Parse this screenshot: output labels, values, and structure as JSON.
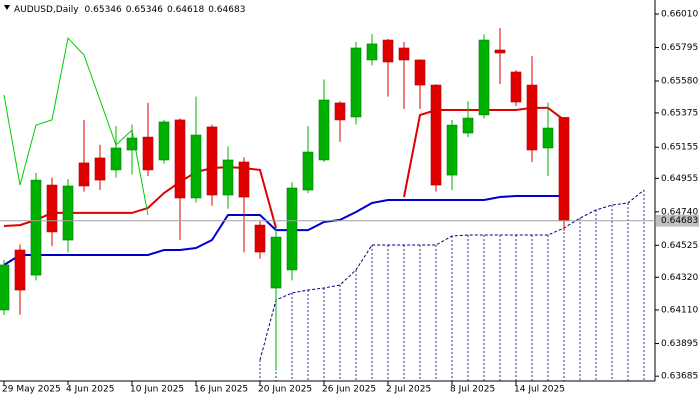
{
  "chart_data": {
    "type": "candlestick",
    "symbol": "AUDUSD,Daily",
    "categories": [
      "29 May 2025",
      null,
      null,
      null,
      "4 Jun 2025",
      null,
      null,
      null,
      "10 Jun 2025",
      null,
      null,
      null,
      "16 Jun 2025",
      null,
      null,
      null,
      "20 Jun 2025",
      null,
      null,
      null,
      "26 Jun 2025",
      null,
      null,
      null,
      "2 Jul 2025",
      null,
      null,
      null,
      "8 Jul 2025",
      null,
      null,
      null,
      "14 Jul 2025",
      null,
      null,
      null,
      null,
      null,
      null,
      null,
      null
    ],
    "open": [
      0.6411,
      0.64495,
      0.64334,
      0.64912,
      0.64559,
      0.65054,
      0.65086,
      0.65009,
      0.65137,
      0.6522,
      0.65073,
      0.6533,
      0.64829,
      0.65285,
      0.64848,
      0.6506,
      0.64655,
      0.64251,
      0.64367,
      0.6488,
      0.65073,
      0.65439,
      0.65349,
      0.65715,
      0.65843,
      0.65792,
      0.65715,
      0.65554,
      0.64976,
      0.65246,
      0.65362,
      0.65779,
      0.65638,
      0.65554,
      0.6515,
      0.65346,
      null,
      null,
      null,
      null,
      null
    ],
    "high": [
      0.64431,
      0.6453,
      0.6499,
      0.6496,
      0.6495,
      0.6533,
      0.6517,
      0.6529,
      0.653,
      0.6544,
      0.6533,
      0.6534,
      0.6548,
      0.653,
      0.6516,
      0.6509,
      0.6468,
      0.6464,
      0.6493,
      0.6529,
      0.6559,
      0.6545,
      0.6583,
      0.6588,
      0.6585,
      0.6583,
      0.6572,
      0.6556,
      0.6533,
      0.6545,
      0.6588,
      0.6592,
      0.6565,
      0.6574,
      0.6544,
      0.65346,
      null,
      null,
      null,
      null,
      null
    ],
    "low": [
      0.64078,
      0.6408,
      0.643,
      0.6452,
      0.6448,
      0.6487,
      0.6488,
      0.6496,
      0.6498,
      0.6497,
      0.6505,
      0.6456,
      0.648,
      0.6478,
      0.6476,
      0.6448,
      0.6444,
      0.6372,
      0.643,
      0.6486,
      0.6506,
      0.6519,
      0.653,
      0.6568,
      0.6548,
      0.654,
      0.654,
      0.6487,
      0.6488,
      0.6522,
      0.6534,
      0.6556,
      0.6542,
      0.6506,
      0.6497,
      0.64618,
      null,
      null,
      null,
      null,
      null
    ],
    "close": [
      0.64399,
      0.64238,
      0.64944,
      0.64611,
      0.64906,
      0.64906,
      0.64944,
      0.6515,
      0.65214,
      0.65009,
      0.65317,
      0.64829,
      0.65233,
      0.64848,
      0.65073,
      0.64835,
      0.64482,
      0.64578,
      0.64893,
      0.65124,
      0.65458,
      0.6533,
      0.65792,
      0.65818,
      0.65702,
      0.65715,
      0.65554,
      0.64912,
      0.65297,
      0.65342,
      0.65843,
      0.6576,
      0.65445,
      0.65137,
      0.65278,
      0.64683,
      null,
      null,
      null,
      null,
      null
    ],
    "up_color": "#00b000",
    "down_color": "#e00000",
    "lines": [
      {
        "color": "#e00000",
        "width": 2,
        "dashed": false,
        "values": [
          0.64649,
          0.64655,
          0.64688,
          0.64733,
          0.64733,
          0.64733,
          0.64733,
          0.64733,
          0.64733,
          0.64765,
          0.64861,
          0.64932,
          0.64996,
          0.65021,
          0.65028,
          0.65021,
          0.65009,
          0.64636,
          null,
          null,
          null,
          null,
          null,
          null,
          null,
          0.64835,
          0.65362,
          0.65394,
          0.65394,
          0.65394,
          0.65394,
          0.65394,
          0.65394,
          0.65407,
          0.65407,
          0.6533,
          null,
          null,
          null,
          null,
          null
        ]
      },
      {
        "color": "#0000cc",
        "width": 2,
        "dashed": false,
        "values": [
          0.64399,
          0.64463,
          0.64463,
          0.64463,
          0.64463,
          0.64463,
          0.64463,
          0.64463,
          0.64463,
          0.64463,
          0.64495,
          0.64495,
          0.64508,
          0.64559,
          0.6472,
          0.6472,
          0.6472,
          0.64623,
          0.64623,
          0.64623,
          0.64675,
          0.64688,
          0.64739,
          0.64797,
          0.64816,
          0.64816,
          0.64816,
          0.64816,
          0.64816,
          0.64816,
          0.64816,
          0.64835,
          0.64842,
          0.64842,
          0.64842,
          0.64842,
          null,
          null,
          null,
          null,
          null
        ]
      },
      {
        "color": "#00cc00",
        "width": 1,
        "dashed": false,
        "values": [
          0.6549,
          0.64912,
          0.65297,
          0.6533,
          0.65856,
          0.65747,
          0.65458,
          0.65169,
          0.65265,
          0.6472,
          null,
          null,
          null,
          null,
          null,
          null,
          null,
          null,
          null,
          null,
          null,
          null,
          null,
          null,
          null,
          null,
          null,
          null,
          null,
          null,
          null,
          null,
          null,
          null,
          null,
          null,
          null,
          null,
          null,
          null,
          null
        ]
      },
      {
        "color": "#000080",
        "width": 1,
        "dashed": true,
        "hatch": true,
        "values": [
          null,
          null,
          null,
          null,
          null,
          null,
          null,
          null,
          null,
          null,
          null,
          null,
          null,
          null,
          null,
          null,
          0.63789,
          0.64174,
          0.64219,
          0.64238,
          0.64251,
          0.6427,
          0.64367,
          0.64527,
          0.64527,
          0.64527,
          0.64527,
          0.64527,
          0.64585,
          0.64591,
          0.64591,
          0.64591,
          0.64591,
          0.64591,
          0.64591,
          0.64636,
          0.647,
          0.64752,
          0.64784,
          0.64797,
          0.6488
        ]
      }
    ],
    "ylim": [
      0.63654,
      0.661
    ],
    "yticks": [
      {
        "value": 0.6601,
        "label": "0.66010"
      },
      0.65795,
      {
        "value": 0.6558,
        "label": "0.65580"
      },
      0.65375,
      0.65155,
      0.64955,
      {
        "value": 0.6474,
        "label": "0.64740"
      },
      0.64525,
      {
        "value": 0.6432,
        "label": "0.64320"
      },
      {
        "value": 0.6411,
        "label": "0.64110"
      },
      0.63895,
      0.63685
    ],
    "current_price_line": true
  }
}
